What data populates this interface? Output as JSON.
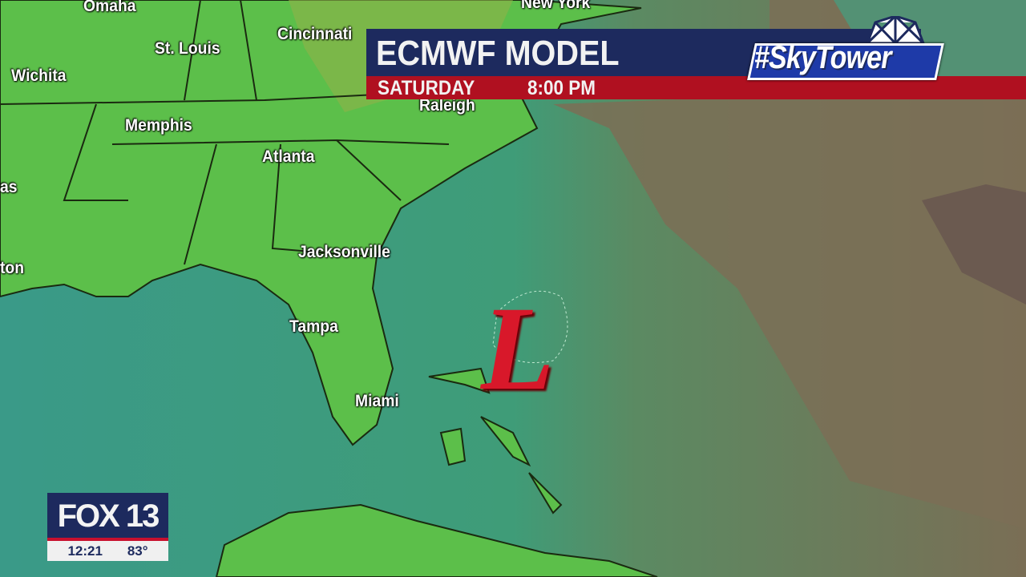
{
  "header": {
    "title": "ECMWF MODEL",
    "day": "SATURDAY",
    "time": "8:00 PM"
  },
  "brand": {
    "hashtag_logo": "#SkyTower"
  },
  "map": {
    "cities": [
      {
        "name": "Omaha"
      },
      {
        "name": "New York"
      },
      {
        "name": "St. Louis"
      },
      {
        "name": "Cincinnati"
      },
      {
        "name": "Wichita"
      },
      {
        "name": "Memphis"
      },
      {
        "name": "Raleigh"
      },
      {
        "name": "Atlanta"
      },
      {
        "name": "as"
      },
      {
        "name": "Jacksonville"
      },
      {
        "name": "ton"
      },
      {
        "name": "Tampa"
      },
      {
        "name": "Miami"
      }
    ],
    "pressure_center": "L",
    "colors": {
      "land": "#5cbf4a",
      "ocean": "#3f9c78",
      "dry": "#7a6e55",
      "low": "#d8182a"
    }
  },
  "station": {
    "logo": "FOX 13",
    "time": "12:21",
    "temp": "83°"
  }
}
